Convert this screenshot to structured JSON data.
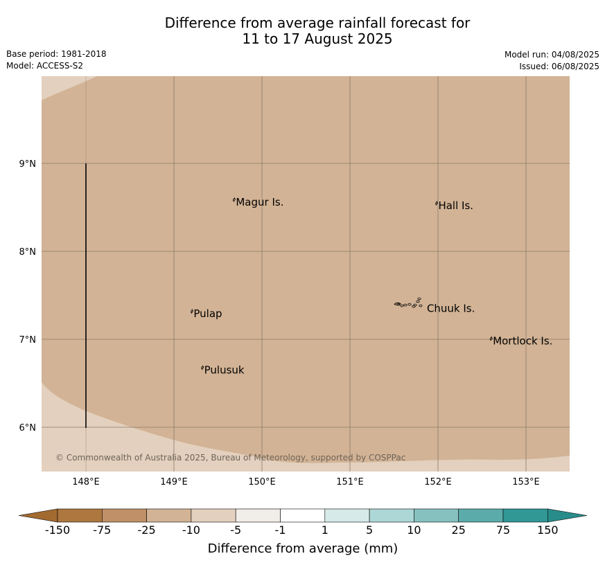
{
  "title": {
    "line1": "Difference from average rainfall forecast for",
    "line2": "11 to 17 August 2025"
  },
  "meta": {
    "base_period": "Base period: 1981-2018",
    "model": "Model: ACCESS-S2",
    "model_run": "Model run: 04/08/2025",
    "issued": "Issued: 06/08/2025"
  },
  "map": {
    "lon_labels": [
      "148°E",
      "149°E",
      "150°E",
      "151°E",
      "152°E",
      "153°E"
    ],
    "lat_labels": [
      "9°N",
      "8°N",
      "7°N",
      "6°N"
    ],
    "places": [
      {
        "name": "Magur Is.",
        "lon": 149.68,
        "lat": 8.56
      },
      {
        "name": "Hall Is.",
        "lon": 151.98,
        "lat": 8.52
      },
      {
        "name": "Pulap",
        "lon": 149.2,
        "lat": 7.29
      },
      {
        "name": "Chuuk Is.",
        "lon": 151.85,
        "lat": 7.35
      },
      {
        "name": "Mortlock Is.",
        "lon": 152.6,
        "lat": 6.98
      },
      {
        "name": "Pulusuk",
        "lon": 149.32,
        "lat": 6.65
      }
    ],
    "colors": {
      "main_anomaly": "#d2b395",
      "edge_anomaly": "#e3d0be",
      "gridline": "#8a7a6a"
    },
    "copyright": "© Commonwealth of Australia 2025, Bureau of Meteorology, supported by COSPPac"
  },
  "colorbar": {
    "title": "Difference from average (mm)",
    "tick_labels": [
      "-150",
      "-75",
      "-25",
      "-10",
      "-5",
      "-1",
      "1",
      "5",
      "10",
      "25",
      "75",
      "150"
    ],
    "colors": [
      "#ad773f",
      "#c09068",
      "#d2b395",
      "#e3d0be",
      "#f1ede8",
      "#ffffff",
      "#d6ebe9",
      "#add7d6",
      "#86c1bf",
      "#5babaa",
      "#319896"
    ],
    "low_end_color": "#a36a30",
    "high_end_color": "#288c8a"
  }
}
